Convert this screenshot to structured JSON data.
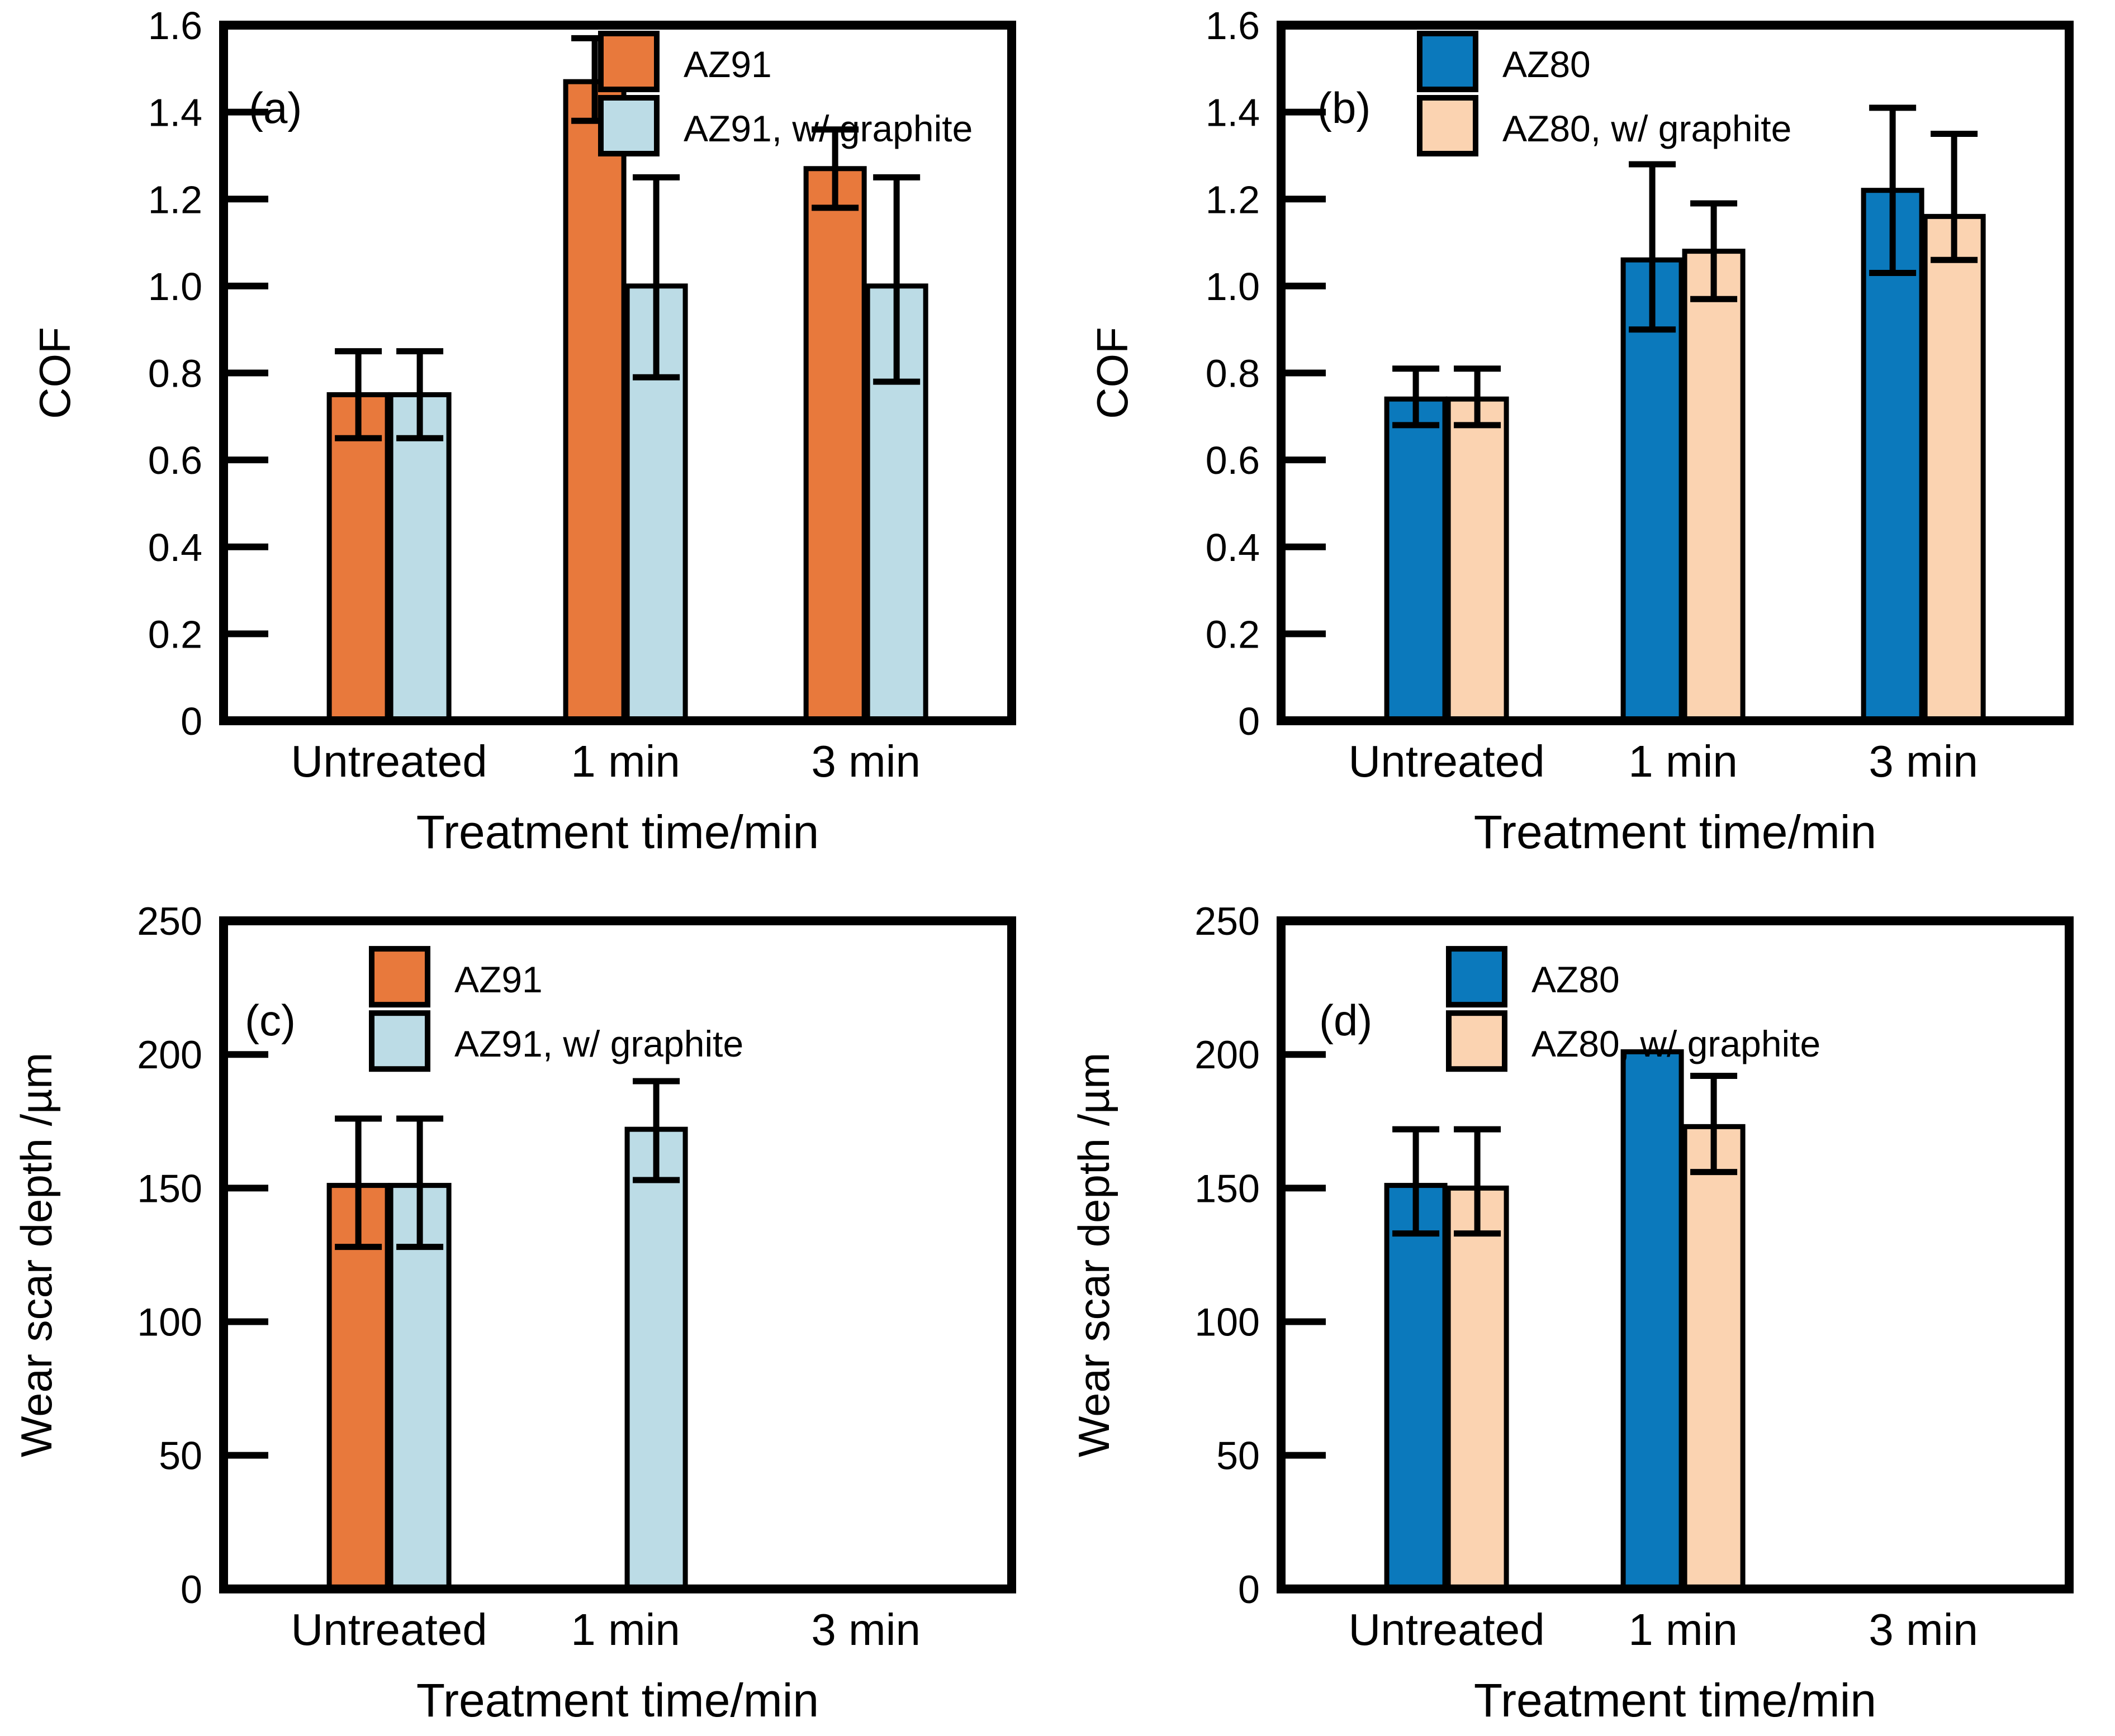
{
  "figure": {
    "background": "#FFFFFF",
    "axis_color": "#000000"
  },
  "chart_data": [
    {
      "type": "bar",
      "panel_label": "(a)",
      "ylabel": "COF",
      "xlabel": "Treatment time/min",
      "categories": [
        "Untreated",
        "1 min",
        "3 min"
      ],
      "ylim": [
        0,
        1.6
      ],
      "ytick_values": [
        0,
        0.2,
        0.4,
        0.6,
        0.8,
        1.0,
        1.2,
        1.4,
        1.6
      ],
      "ytick_labels": [
        "0",
        "0.2",
        "0.4",
        "0.6",
        "0.8",
        "1.0",
        "1.2",
        "1.4",
        "1.6"
      ],
      "grid": false,
      "legend_position": "inside top",
      "series": [
        {
          "name": "AZ91",
          "color": "#E8793C",
          "values": [
            0.75,
            1.47,
            1.27
          ],
          "err_lo": [
            0.65,
            1.38,
            1.18
          ],
          "err_hi": [
            0.85,
            1.57,
            1.36
          ]
        },
        {
          "name": "AZ91, w/ graphite",
          "color": "#BCDCE6",
          "values": [
            0.75,
            1.0,
            1.0
          ],
          "err_lo": [
            0.65,
            0.79,
            0.78
          ],
          "err_hi": [
            0.85,
            1.25,
            1.25
          ]
        }
      ]
    },
    {
      "type": "bar",
      "panel_label": "(b)",
      "ylabel": "COF",
      "xlabel": "Treatment time/min",
      "categories": [
        "Untreated",
        "1 min",
        "3 min"
      ],
      "ylim": [
        0,
        1.6
      ],
      "ytick_values": [
        0,
        0.2,
        0.4,
        0.6,
        0.8,
        1.0,
        1.2,
        1.4,
        1.6
      ],
      "ytick_labels": [
        "0",
        "0.2",
        "0.4",
        "0.6",
        "0.8",
        "1.0",
        "1.2",
        "1.4",
        "1.6"
      ],
      "grid": false,
      "legend_position": "inside top",
      "series": [
        {
          "name": "AZ80",
          "color": "#0B79BC",
          "values": [
            0.74,
            1.06,
            1.22
          ],
          "err_lo": [
            0.68,
            0.9,
            1.03
          ],
          "err_hi": [
            0.81,
            1.28,
            1.41
          ]
        },
        {
          "name": "AZ80, w/ graphite",
          "color": "#FBD3B1",
          "values": [
            0.74,
            1.08,
            1.16
          ],
          "err_lo": [
            0.68,
            0.97,
            1.06
          ],
          "err_hi": [
            0.81,
            1.19,
            1.35
          ]
        }
      ]
    },
    {
      "type": "bar",
      "panel_label": "(c)",
      "ylabel": "Wear scar depth /µm",
      "xlabel": "Treatment time/min",
      "categories": [
        "Untreated",
        "1 min",
        "3 min"
      ],
      "ylim": [
        0,
        250
      ],
      "ytick_values": [
        0,
        50,
        100,
        150,
        200,
        250
      ],
      "ytick_labels": [
        "0",
        "50",
        "100",
        "150",
        "200",
        "250"
      ],
      "grid": false,
      "legend_position": "inside top",
      "series": [
        {
          "name": "AZ91",
          "color": "#E8793C",
          "values": [
            151,
            null,
            null
          ],
          "err_lo": [
            128,
            null,
            null
          ],
          "err_hi": [
            176,
            null,
            null
          ]
        },
        {
          "name": "AZ91, w/ graphite",
          "color": "#BCDCE6",
          "values": [
            151,
            172,
            null
          ],
          "err_lo": [
            128,
            153,
            null
          ],
          "err_hi": [
            176,
            190,
            null
          ]
        }
      ]
    },
    {
      "type": "bar",
      "panel_label": "(d)",
      "ylabel": "Wear scar depth /µm",
      "xlabel": "Treatment time/min",
      "categories": [
        "Untreated",
        "1 min",
        "3 min"
      ],
      "ylim": [
        0,
        250
      ],
      "ytick_values": [
        0,
        50,
        100,
        150,
        200,
        250
      ],
      "ytick_labels": [
        "0",
        "50",
        "100",
        "150",
        "200",
        "250"
      ],
      "grid": false,
      "legend_position": "inside top",
      "series": [
        {
          "name": "AZ80",
          "color": "#0B79BC",
          "values": [
            151,
            201,
            null
          ],
          "err_lo": [
            133,
            null,
            null
          ],
          "err_hi": [
            172,
            null,
            null
          ]
        },
        {
          "name": "AZ80, w/ graphite",
          "color": "#FBD3B1",
          "values": [
            150,
            173,
            null
          ],
          "err_lo": [
            133,
            156,
            null
          ],
          "err_hi": [
            172,
            192,
            null
          ]
        }
      ]
    }
  ]
}
